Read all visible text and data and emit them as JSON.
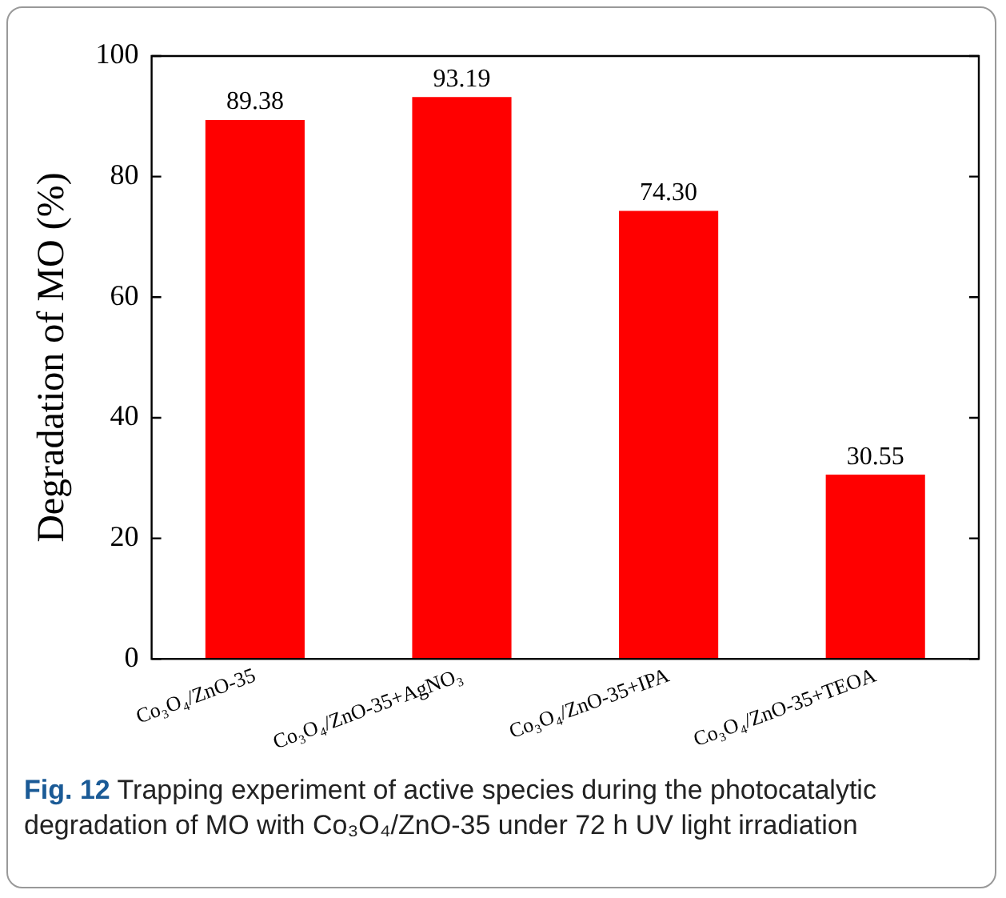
{
  "chart_data": {
    "type": "bar",
    "ylabel": "Degradation of MO (%)",
    "categories": [
      "Co₃O₄/ZnO-35",
      "Co₃O₄/ZnO-35+AgNO₃",
      "Co₃O₄/ZnO-35+IPA",
      "Co₃O₄/ZnO-35+TEOA"
    ],
    "values": [
      89.38,
      93.19,
      74.3,
      30.55
    ],
    "value_labels": [
      "89.38",
      "93.19",
      "74.30",
      "30.55"
    ],
    "color": "#ff0000",
    "ylim": [
      0,
      100
    ],
    "yticks": [
      0,
      20,
      40,
      60,
      80,
      100
    ],
    "grid": false,
    "legend": false,
    "annotations": [
      "Fig. 12",
      "Trapping experiment of active species during the photocatalytic degradation of MO with Co₃O₄/ZnO-35 under 72 h UV light irradiation"
    ]
  }
}
